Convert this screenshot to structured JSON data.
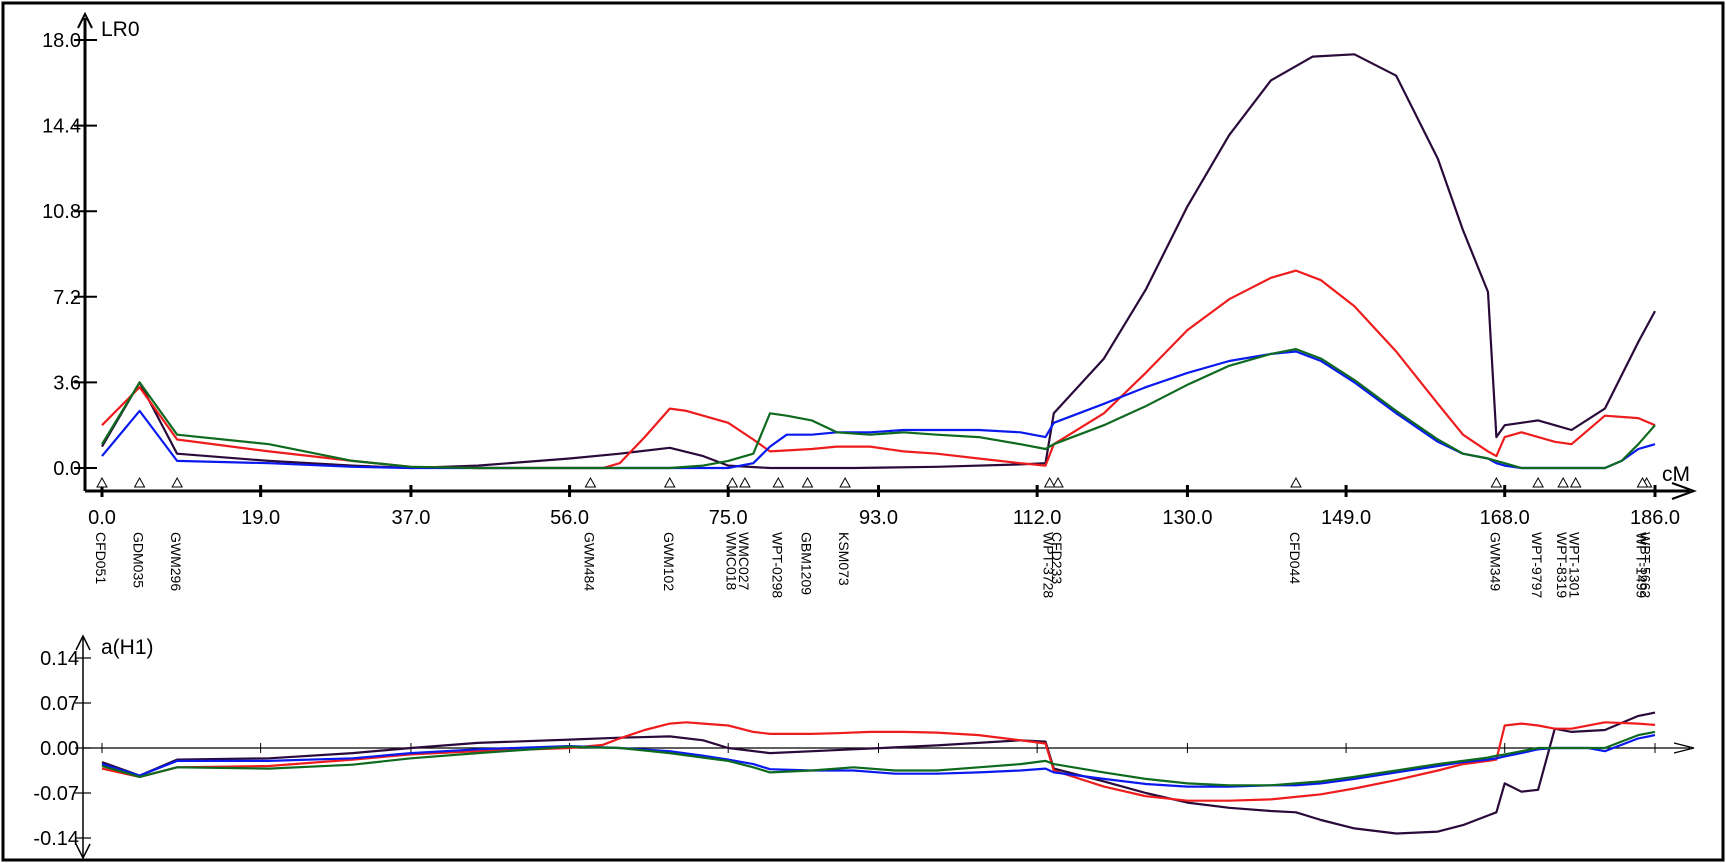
{
  "chart_data": [
    {
      "type": "line",
      "panel": "lod-profile",
      "ylabel": "LR0",
      "xlabel": "cM",
      "xlim": [
        0,
        186
      ],
      "ylim": [
        0,
        18
      ],
      "x_ticks": [
        "0.0",
        "19.0",
        "37.0",
        "56.0",
        "75.0",
        "93.0",
        "112.0",
        "130.0",
        "149.0",
        "168.0",
        "186.0"
      ],
      "y_ticks": [
        "0.0",
        "3.6",
        "7.2",
        "10.8",
        "14.4",
        "18.0"
      ],
      "grid": false,
      "markers": [
        {
          "name": "CFD051",
          "cM": 0.0
        },
        {
          "name": "GDM035",
          "cM": 4.5
        },
        {
          "name": "GWM296",
          "cM": 9.0
        },
        {
          "name": "GWM484",
          "cM": 58.5
        },
        {
          "name": "GWM102",
          "cM": 68.0
        },
        {
          "name": "WMC018",
          "cM": 75.5
        },
        {
          "name": "WMC027",
          "cM": 77.0
        },
        {
          "name": "WPT-0298",
          "cM": 81.0
        },
        {
          "name": "GBM1209",
          "cM": 84.5
        },
        {
          "name": "KSM073",
          "cM": 89.0
        },
        {
          "name": "CFD233",
          "cM": 114.5
        },
        {
          "name": "WPT-3728",
          "cM": 113.5
        },
        {
          "name": "CFD044",
          "cM": 143.0
        },
        {
          "name": "GWM349",
          "cM": 167.0
        },
        {
          "name": "WPT-9797",
          "cM": 172.0
        },
        {
          "name": "WPT-8319",
          "cM": 175.0
        },
        {
          "name": "WPT-1301",
          "cM": 176.5
        },
        {
          "name": "WPT-5662",
          "cM": 185.0
        },
        {
          "name": "WPT-1499",
          "cM": 184.5
        }
      ],
      "series": [
        {
          "color": "#2a0a3a",
          "x": [
            0,
            4.5,
            9,
            20,
            30,
            37,
            45,
            56,
            62,
            68,
            72,
            75,
            80,
            90,
            100,
            110,
            113,
            114,
            120,
            125,
            130,
            135,
            140,
            145,
            150,
            155,
            160,
            163,
            166,
            167,
            168,
            170,
            172,
            174,
            176,
            180,
            184,
            186
          ],
          "y": [
            0.9,
            3.6,
            0.6,
            0.3,
            0.1,
            0.0,
            0.1,
            0.4,
            0.6,
            0.85,
            0.5,
            0.1,
            0.0,
            0.0,
            0.05,
            0.15,
            0.2,
            2.3,
            4.6,
            7.5,
            11.0,
            14.0,
            16.3,
            17.3,
            17.4,
            16.5,
            13.0,
            10.0,
            7.4,
            1.3,
            1.8,
            1.9,
            2.0,
            1.8,
            1.6,
            2.5,
            5.3,
            6.6
          ]
        },
        {
          "color": "#ee1c1c",
          "x": [
            0,
            4.5,
            9,
            20,
            30,
            37,
            45,
            56,
            60,
            62,
            65,
            68,
            70,
            72,
            75,
            78,
            80,
            85,
            88,
            92,
            96,
            100,
            105,
            110,
            113,
            114,
            120,
            125,
            130,
            135,
            140,
            143,
            146,
            150,
            155,
            160,
            163,
            166,
            167,
            168,
            170,
            174,
            176,
            180,
            184,
            186
          ],
          "y": [
            1.8,
            3.4,
            1.2,
            0.7,
            0.3,
            0.05,
            0.0,
            0.0,
            0.0,
            0.2,
            1.3,
            2.5,
            2.4,
            2.2,
            1.9,
            1.2,
            0.7,
            0.8,
            0.9,
            0.9,
            0.7,
            0.6,
            0.4,
            0.2,
            0.1,
            1.0,
            2.3,
            4.0,
            5.8,
            7.1,
            8.0,
            8.3,
            7.9,
            6.8,
            4.9,
            2.7,
            1.4,
            0.7,
            0.5,
            1.3,
            1.5,
            1.1,
            1.0,
            2.2,
            2.1,
            1.8
          ]
        },
        {
          "color": "#0a1aee",
          "x": [
            0,
            4.5,
            9,
            20,
            30,
            37,
            45,
            56,
            62,
            68,
            72,
            75,
            78,
            80,
            82,
            85,
            88,
            92,
            96,
            100,
            105,
            110,
            113,
            114,
            120,
            125,
            130,
            135,
            140,
            143,
            146,
            150,
            155,
            160,
            163,
            166,
            167,
            168,
            170,
            172,
            174,
            176,
            180,
            182,
            184,
            186
          ],
          "y": [
            0.5,
            2.4,
            0.3,
            0.2,
            0.05,
            0.0,
            0.0,
            0.0,
            0.0,
            0.0,
            0.0,
            0.0,
            0.2,
            0.9,
            1.4,
            1.4,
            1.5,
            1.5,
            1.6,
            1.6,
            1.6,
            1.5,
            1.3,
            1.9,
            2.7,
            3.4,
            4.0,
            4.5,
            4.8,
            4.9,
            4.5,
            3.6,
            2.3,
            1.1,
            0.6,
            0.4,
            0.2,
            0.1,
            0.0,
            0.0,
            0.0,
            0.0,
            0.0,
            0.3,
            0.8,
            1.0
          ]
        },
        {
          "color": "#0e6a1e",
          "x": [
            0,
            4.5,
            9,
            20,
            30,
            37,
            45,
            56,
            62,
            68,
            72,
            75,
            78,
            80,
            82,
            85,
            88,
            92,
            96,
            100,
            105,
            110,
            113,
            114,
            120,
            125,
            130,
            135,
            140,
            143,
            146,
            150,
            155,
            160,
            163,
            166,
            167,
            168,
            170,
            172,
            174,
            176,
            180,
            182,
            184,
            186
          ],
          "y": [
            1.0,
            3.6,
            1.4,
            1.0,
            0.3,
            0.05,
            0.0,
            0.0,
            0.0,
            0.0,
            0.1,
            0.3,
            0.6,
            2.3,
            2.2,
            2.0,
            1.5,
            1.4,
            1.5,
            1.4,
            1.3,
            1.0,
            0.8,
            1.0,
            1.8,
            2.6,
            3.5,
            4.3,
            4.8,
            5.0,
            4.6,
            3.7,
            2.4,
            1.2,
            0.6,
            0.4,
            0.3,
            0.2,
            0.0,
            0.0,
            0.0,
            0.0,
            0.0,
            0.3,
            1.0,
            1.8
          ]
        }
      ]
    },
    {
      "type": "line",
      "panel": "additive-effect",
      "ylabel": "a(H1)",
      "xlim": [
        0,
        186
      ],
      "ylim": [
        -0.14,
        0.14
      ],
      "y_ticks": [
        "-0.14",
        "-0.07",
        "0.00",
        "0.07",
        "0.14"
      ],
      "grid": false,
      "series": [
        {
          "color": "#2a0a3a",
          "x": [
            0,
            4.5,
            9,
            20,
            30,
            37,
            45,
            56,
            62,
            68,
            72,
            75,
            80,
            90,
            100,
            110,
            113,
            114,
            120,
            125,
            130,
            135,
            140,
            143,
            146,
            150,
            155,
            160,
            163,
            166,
            167,
            168,
            170,
            172,
            174,
            176,
            180,
            184,
            186
          ],
          "y": [
            -0.022,
            -0.043,
            -0.018,
            -0.016,
            -0.008,
            0.0,
            0.008,
            0.013,
            0.016,
            0.018,
            0.012,
            0.0,
            -0.008,
            -0.002,
            0.004,
            0.012,
            0.01,
            -0.032,
            -0.052,
            -0.07,
            -0.085,
            -0.093,
            -0.098,
            -0.1,
            -0.112,
            -0.125,
            -0.133,
            -0.13,
            -0.12,
            -0.105,
            -0.1,
            -0.055,
            -0.068,
            -0.065,
            0.03,
            0.025,
            0.028,
            0.05,
            0.055
          ]
        },
        {
          "color": "#ee1c1c",
          "x": [
            0,
            4.5,
            9,
            20,
            30,
            37,
            45,
            56,
            60,
            62,
            65,
            68,
            70,
            72,
            75,
            78,
            80,
            85,
            88,
            92,
            96,
            100,
            105,
            110,
            113,
            114,
            120,
            125,
            130,
            135,
            140,
            143,
            146,
            150,
            155,
            160,
            163,
            166,
            167,
            168,
            170,
            172,
            174,
            176,
            180,
            184,
            186
          ],
          "y": [
            -0.032,
            -0.045,
            -0.03,
            -0.028,
            -0.018,
            -0.01,
            -0.005,
            0.0,
            0.005,
            0.015,
            0.028,
            0.038,
            0.04,
            0.038,
            0.035,
            0.025,
            0.022,
            0.022,
            0.023,
            0.025,
            0.025,
            0.024,
            0.02,
            0.012,
            0.007,
            -0.035,
            -0.06,
            -0.075,
            -0.082,
            -0.082,
            -0.08,
            -0.076,
            -0.072,
            -0.063,
            -0.05,
            -0.035,
            -0.025,
            -0.02,
            -0.018,
            0.035,
            0.038,
            0.035,
            0.03,
            0.03,
            0.04,
            0.038,
            0.036
          ]
        },
        {
          "color": "#0a1aee",
          "x": [
            0,
            4.5,
            9,
            20,
            30,
            37,
            45,
            56,
            62,
            68,
            72,
            75,
            78,
            80,
            85,
            90,
            95,
            100,
            105,
            110,
            113,
            114,
            120,
            125,
            130,
            135,
            140,
            143,
            146,
            150,
            155,
            160,
            163,
            166,
            167,
            168,
            170,
            172,
            174,
            176,
            178,
            180,
            184,
            186
          ],
          "y": [
            -0.025,
            -0.043,
            -0.02,
            -0.02,
            -0.016,
            -0.008,
            -0.002,
            0.003,
            0.0,
            -0.005,
            -0.012,
            -0.018,
            -0.025,
            -0.033,
            -0.035,
            -0.035,
            -0.04,
            -0.04,
            -0.038,
            -0.035,
            -0.032,
            -0.038,
            -0.048,
            -0.056,
            -0.06,
            -0.06,
            -0.058,
            -0.058,
            -0.055,
            -0.048,
            -0.038,
            -0.028,
            -0.022,
            -0.018,
            -0.016,
            -0.013,
            -0.008,
            -0.002,
            0.0,
            0.0,
            0.0,
            -0.005,
            0.015,
            0.02
          ]
        },
        {
          "color": "#0e6a1e",
          "x": [
            0,
            4.5,
            9,
            20,
            30,
            37,
            45,
            56,
            62,
            68,
            72,
            75,
            78,
            80,
            85,
            90,
            95,
            100,
            105,
            110,
            113,
            114,
            120,
            125,
            130,
            135,
            140,
            143,
            146,
            150,
            155,
            160,
            163,
            166,
            167,
            168,
            170,
            172,
            174,
            176,
            178,
            180,
            184,
            186
          ],
          "y": [
            -0.028,
            -0.045,
            -0.03,
            -0.032,
            -0.026,
            -0.016,
            -0.008,
            0.002,
            0.0,
            -0.008,
            -0.015,
            -0.02,
            -0.03,
            -0.038,
            -0.035,
            -0.03,
            -0.035,
            -0.035,
            -0.03,
            -0.025,
            -0.02,
            -0.025,
            -0.038,
            -0.048,
            -0.055,
            -0.058,
            -0.058,
            -0.055,
            -0.052,
            -0.045,
            -0.035,
            -0.025,
            -0.02,
            -0.015,
            -0.012,
            -0.01,
            -0.005,
            0.0,
            0.0,
            0.0,
            0.0,
            0.0,
            0.02,
            0.025
          ]
        }
      ]
    }
  ]
}
